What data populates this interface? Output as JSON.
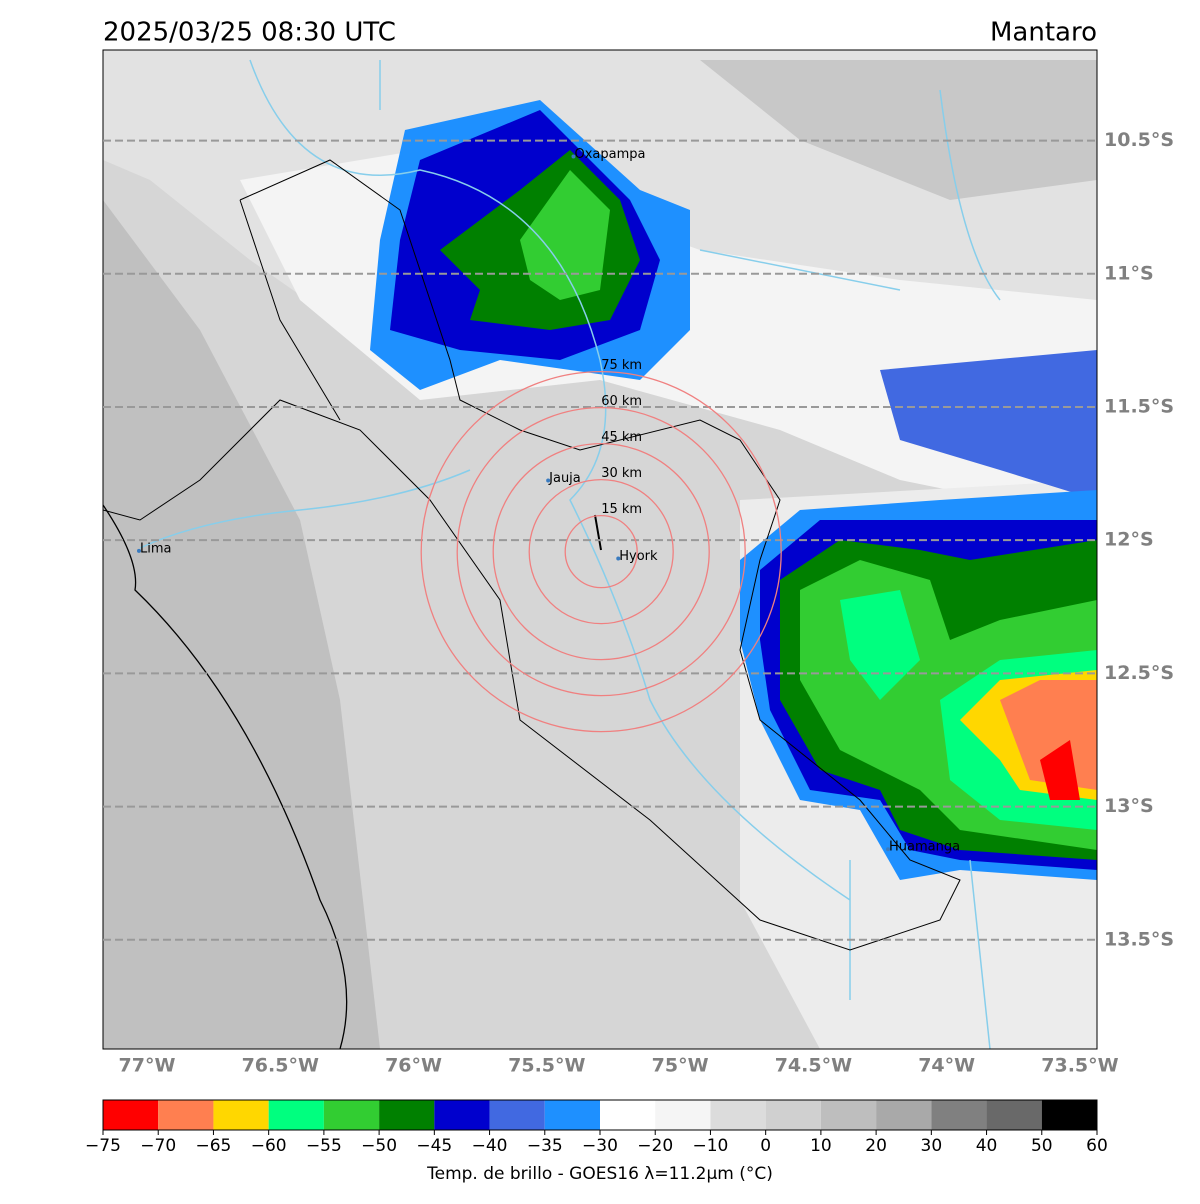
{
  "map": {
    "title": "2025/03/25 08:30 UTC",
    "region": "Mantaro",
    "xlim": [
      -77.165,
      -73.436
    ],
    "ylim": [
      -13.91,
      -10.16
    ],
    "lat_grid": true,
    "lat_ticks": [
      {
        "value": -10.5,
        "label": "10.5°S"
      },
      {
        "value": -11,
        "label": "11°S"
      },
      {
        "value": -11.5,
        "label": "11.5°S"
      },
      {
        "value": -12,
        "label": "12°S"
      },
      {
        "value": -12.5,
        "label": "12.5°S"
      },
      {
        "value": -13,
        "label": "13°S"
      },
      {
        "value": -13.5,
        "label": "13.5°S"
      }
    ],
    "lon_ticks": [
      {
        "value": -77,
        "label": "77°W"
      },
      {
        "value": -76.5,
        "label": "76.5°W"
      },
      {
        "value": -76,
        "label": "76°W"
      },
      {
        "value": -75.5,
        "label": "75.5°W"
      },
      {
        "value": -75,
        "label": "75°W"
      },
      {
        "value": -74.5,
        "label": "74.5°W"
      },
      {
        "value": -74,
        "label": "74°W"
      },
      {
        "value": -73.5,
        "label": "73.5°W"
      }
    ],
    "cities": [
      {
        "name": "Oxapampa",
        "lon": -75.4,
        "lat": -10.56
      },
      {
        "name": "Jauja",
        "lon": -75.495,
        "lat": -11.776
      },
      {
        "name": "Hyork",
        "lon": -75.232,
        "lat": -12.069
      },
      {
        "name": "Lima",
        "lon": -77.03,
        "lat": -12.04
      },
      {
        "name": "Huamanga",
        "lon": -74.22,
        "lat": -13.16
      }
    ],
    "rings": {
      "center": {
        "lon": -75.296,
        "lat": -12.043
      },
      "values": [
        15,
        30,
        45,
        60,
        75
      ],
      "value_labels": [
        "15 km",
        "30 km",
        "45 km",
        "60 km",
        "75 km"
      ]
    },
    "colorbar": {
      "label": "Temp. de brillo - GOES16 λ=11.2μm (°C)",
      "ticks": [
        {
          "value": -75,
          "label": "−75"
        },
        {
          "value": -70,
          "label": "−70"
        },
        {
          "value": -65,
          "label": "−65"
        },
        {
          "value": -60,
          "label": "−60"
        },
        {
          "value": -55,
          "label": "−55"
        },
        {
          "value": -50,
          "label": "−50"
        },
        {
          "value": -45,
          "label": "−45"
        },
        {
          "value": -40,
          "label": "−40"
        },
        {
          "value": -35,
          "label": "−35"
        },
        {
          "value": -30,
          "label": "−30"
        },
        {
          "value": -20,
          "label": "−20"
        },
        {
          "value": -10,
          "label": "−10"
        },
        0,
        10,
        20,
        30,
        40,
        50,
        60
      ],
      "colors": [
        "#ff0000",
        "#ff7f50",
        "#ffd700",
        "#00ff7f",
        "#32cd32",
        "#008000",
        "#0000cd",
        "#4169e1",
        "#1e90ff",
        "#ffffff",
        "#f5f5f5",
        "#dcdcdc",
        "#d0d0d0",
        "#bebebe",
        "#a9a9a9",
        "#808080",
        "#696969",
        "#000000"
      ]
    }
  }
}
